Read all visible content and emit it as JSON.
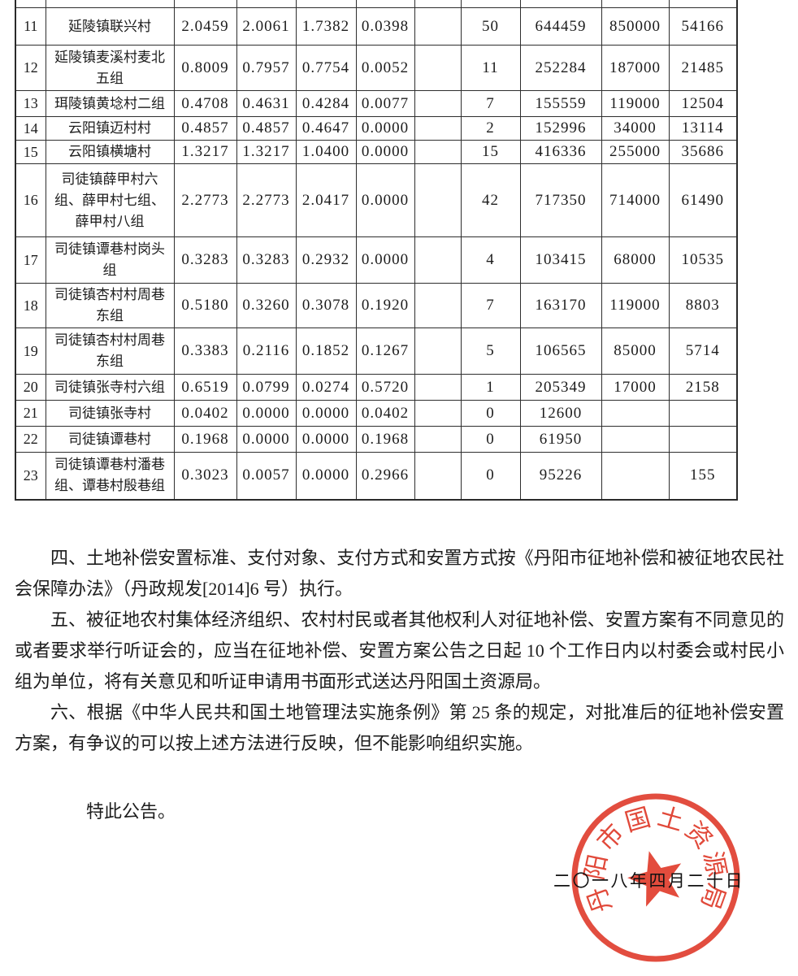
{
  "table": {
    "rows": [
      [
        "11",
        "延陵镇联兴村",
        "2.0459",
        "2.0061",
        "1.7382",
        "0.0398",
        "",
        "50",
        "644459",
        "850000",
        "54166"
      ],
      [
        "12",
        "延陵镇麦溪村麦北五组",
        "0.8009",
        "0.7957",
        "0.7754",
        "0.0052",
        "",
        "11",
        "252284",
        "187000",
        "21485"
      ],
      [
        "13",
        "珥陵镇黄埝村二组",
        "0.4708",
        "0.4631",
        "0.4284",
        "0.0077",
        "",
        "7",
        "155559",
        "119000",
        "12504"
      ],
      [
        "14",
        "云阳镇迈村村",
        "0.4857",
        "0.4857",
        "0.4647",
        "0.0000",
        "",
        "2",
        "152996",
        "34000",
        "13114"
      ],
      [
        "15",
        "云阳镇横塘村",
        "1.3217",
        "1.3217",
        "1.0400",
        "0.0000",
        "",
        "15",
        "416336",
        "255000",
        "35686"
      ],
      [
        "16",
        "司徒镇薛甲村六组、薛甲村七组、薛甲村八组",
        "2.2773",
        "2.2773",
        "2.0417",
        "0.0000",
        "",
        "42",
        "717350",
        "714000",
        "61490"
      ],
      [
        "17",
        "司徒镇谭巷村岗头组",
        "0.3283",
        "0.3283",
        "0.2932",
        "0.0000",
        "",
        "4",
        "103415",
        "68000",
        "10535"
      ],
      [
        "18",
        "司徒镇杏村村周巷东组",
        "0.5180",
        "0.3260",
        "0.3078",
        "0.1920",
        "",
        "7",
        "163170",
        "119000",
        "8803"
      ],
      [
        "19",
        "司徒镇杏村村周巷东组",
        "0.3383",
        "0.2116",
        "0.1852",
        "0.1267",
        "",
        "5",
        "106565",
        "85000",
        "5714"
      ],
      [
        "20",
        "司徒镇张寺村六组",
        "0.6519",
        "0.0799",
        "0.0274",
        "0.5720",
        "",
        "1",
        "205349",
        "17000",
        "2158"
      ],
      [
        "21",
        "司徒镇张寺村",
        "0.0402",
        "0.0000",
        "0.0000",
        "0.0402",
        "",
        "0",
        "12600",
        "",
        ""
      ],
      [
        "22",
        "司徒镇谭巷村",
        "0.1968",
        "0.0000",
        "0.0000",
        "0.1968",
        "",
        "0",
        "61950",
        "",
        ""
      ],
      [
        "23",
        "司徒镇谭巷村潘巷组、谭巷村殷巷组",
        "0.3023",
        "0.0057",
        "0.0000",
        "0.2966",
        "",
        "0",
        "95226",
        "",
        "155"
      ]
    ]
  },
  "document": {
    "paragraphs": [
      "四、土地补偿安置标准、支付对象、支付方式和安置方式按《丹阳市征地补偿和被征地农民社会保障办法》（丹政规发[2014]6 号）执行。",
      "五、被征地农村集体经济组织、农村村民或者其他权利人对征地补偿、安置方案有不同意见的或者要求举行听证会的，应当在征地补偿、安置方案公告之日起 10 个工作日内以村委会或村民小组为单位，将有关意见和听证申请用书面形式送达丹阳国土资源局。",
      "六、根据《中华人民共和国土地管理法实施条例》第 25 条的规定，对批准后的征地补偿安置方案，有争议的可以按上述方法进行反映，但不能影响组织实施。"
    ],
    "closing": "特此公告。",
    "date": "二〇一八年四月二十日",
    "seal_text": "丹阳市国土资源局",
    "seal_color": "#df3a2a"
  }
}
